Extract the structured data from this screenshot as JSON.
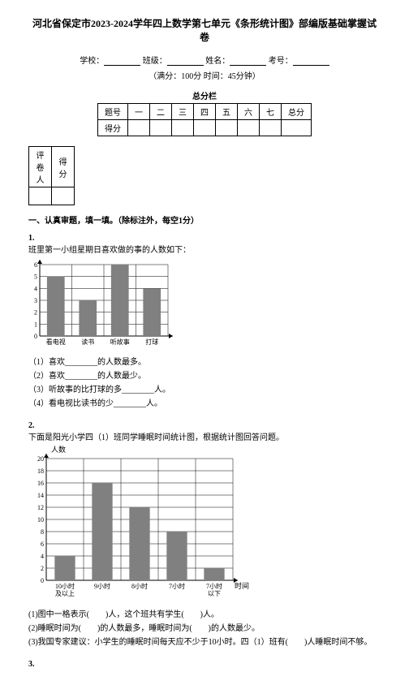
{
  "title": "河北省保定市2023-2024学年四上数学第七单元《条形统计图》部编版基础掌握试卷",
  "info": {
    "school_label": "学校：",
    "class_label": "班级：",
    "name_label": "姓名：",
    "exam_no_label": "考号："
  },
  "exam_info": "（满分：100分 时间：45分钟）",
  "total_score_label": "总分栏",
  "score_headers": [
    "题号",
    "一",
    "二",
    "三",
    "四",
    "五",
    "六",
    "七",
    "总分"
  ],
  "score_row_label": "得分",
  "reviewer_headers": [
    "评卷人",
    "得分"
  ],
  "section1": "一、认真审题，填一填。（除标注外，每空1分）",
  "q1": {
    "num": "1.",
    "intro": "班里第一小组星期日喜欢做的事的人数如下：",
    "chart": {
      "type": "bar",
      "y_max": 6,
      "y_ticks": [
        1,
        2,
        3,
        4,
        5,
        6
      ],
      "categories": [
        "看电视",
        "读书",
        "听故事",
        "打球"
      ],
      "values": [
        5,
        3,
        6,
        4
      ],
      "bar_color": "#808080",
      "grid_color": "#000000",
      "bg_color": "#ffffff"
    },
    "subs": [
      "（1）喜欢________的人数最多。",
      "（2）喜欢________的人数最少。",
      "（3）听故事的比打球的多________人。",
      "（4）看电视比读书的少________人。"
    ]
  },
  "q2": {
    "num": "2.",
    "intro": "下面是阳光小学四（1）班同学睡眠时间统计图，根据统计图回答问题。",
    "chart": {
      "type": "bar",
      "y_label": "人数",
      "x_label": "时间",
      "y_max": 20,
      "y_ticks": [
        2,
        4,
        6,
        8,
        10,
        12,
        14,
        16,
        18,
        20
      ],
      "categories": [
        "10小时\n及以上",
        "9小时",
        "8小时",
        "7小时",
        "7小时\n以下"
      ],
      "values": [
        4,
        16,
        12,
        8,
        2
      ],
      "bar_color": "#808080",
      "grid_color": "#000000",
      "bg_color": "#ffffff"
    },
    "subs": [
      "(1)图中一格表示(　　)人，这个班共有学生(　　)人。",
      "(2)睡眠时间为(　　)的人数最多，睡眠时间为(　　)的人数最少。",
      "(3)我国专家建议：小学生的睡眠时间每天应不少于10小时。四（1）班有(　　)人睡眠时间不够。"
    ]
  },
  "q3": {
    "num": "3."
  }
}
